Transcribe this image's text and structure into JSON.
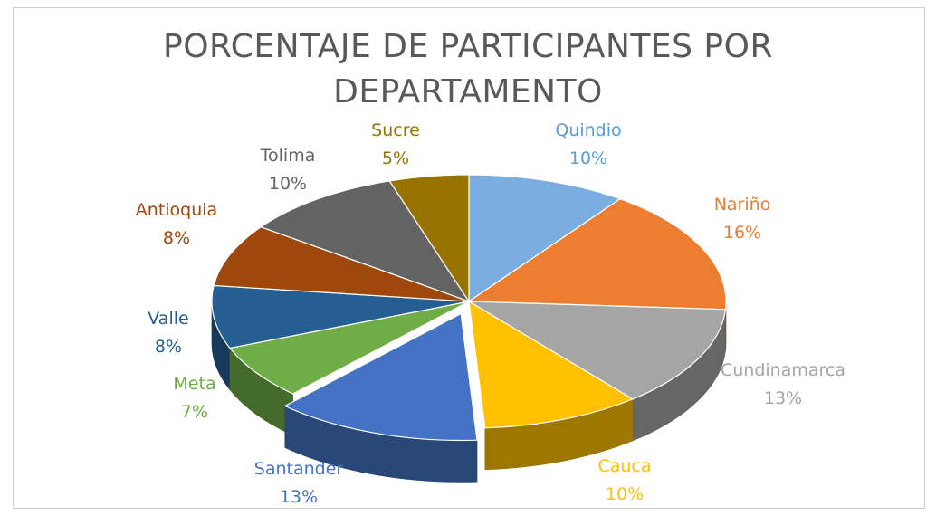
{
  "chart_data": {
    "type": "pie",
    "title_line1": "PORCENTAJE  DE PARTICIPANTES POR",
    "title_line2": "DEPARTAMENTO",
    "slices": [
      {
        "label": "Quindio",
        "value": 10,
        "pct_text": "10%",
        "color": "#7aaee0"
      },
      {
        "label": "Nariño",
        "value": 16,
        "pct_text": "16%",
        "color": "#ed7d31"
      },
      {
        "label": "Cundinamarca",
        "value": 13,
        "pct_text": "13%",
        "color": "#a5a5a5"
      },
      {
        "label": "Cauca",
        "value": 10,
        "pct_text": "10%",
        "color": "#ffc000"
      },
      {
        "label": "Santander",
        "value": 13,
        "pct_text": "13%",
        "color": "#4472c4"
      },
      {
        "label": "Meta",
        "value": 7,
        "pct_text": "7%",
        "color": "#70ad47"
      },
      {
        "label": "Valle",
        "value": 8,
        "pct_text": "8%",
        "color": "#255e91"
      },
      {
        "label": "Antioquia",
        "value": 8,
        "pct_text": "8%",
        "color": "#9e480e"
      },
      {
        "label": "Tolima",
        "value": 10,
        "pct_text": "10%",
        "color": "#636363"
      },
      {
        "label": "Sucre",
        "value": 5,
        "pct_text": "5%",
        "color": "#997300"
      }
    ],
    "label_colors": [
      "#5b9bd5",
      "#ed7d31",
      "#a5a5a5",
      "#ffc000",
      "#4472c4",
      "#70ad47",
      "#255e91",
      "#9e480e",
      "#636363",
      "#997300"
    ],
    "legend": "none",
    "style": "3d-exploded-slice"
  }
}
